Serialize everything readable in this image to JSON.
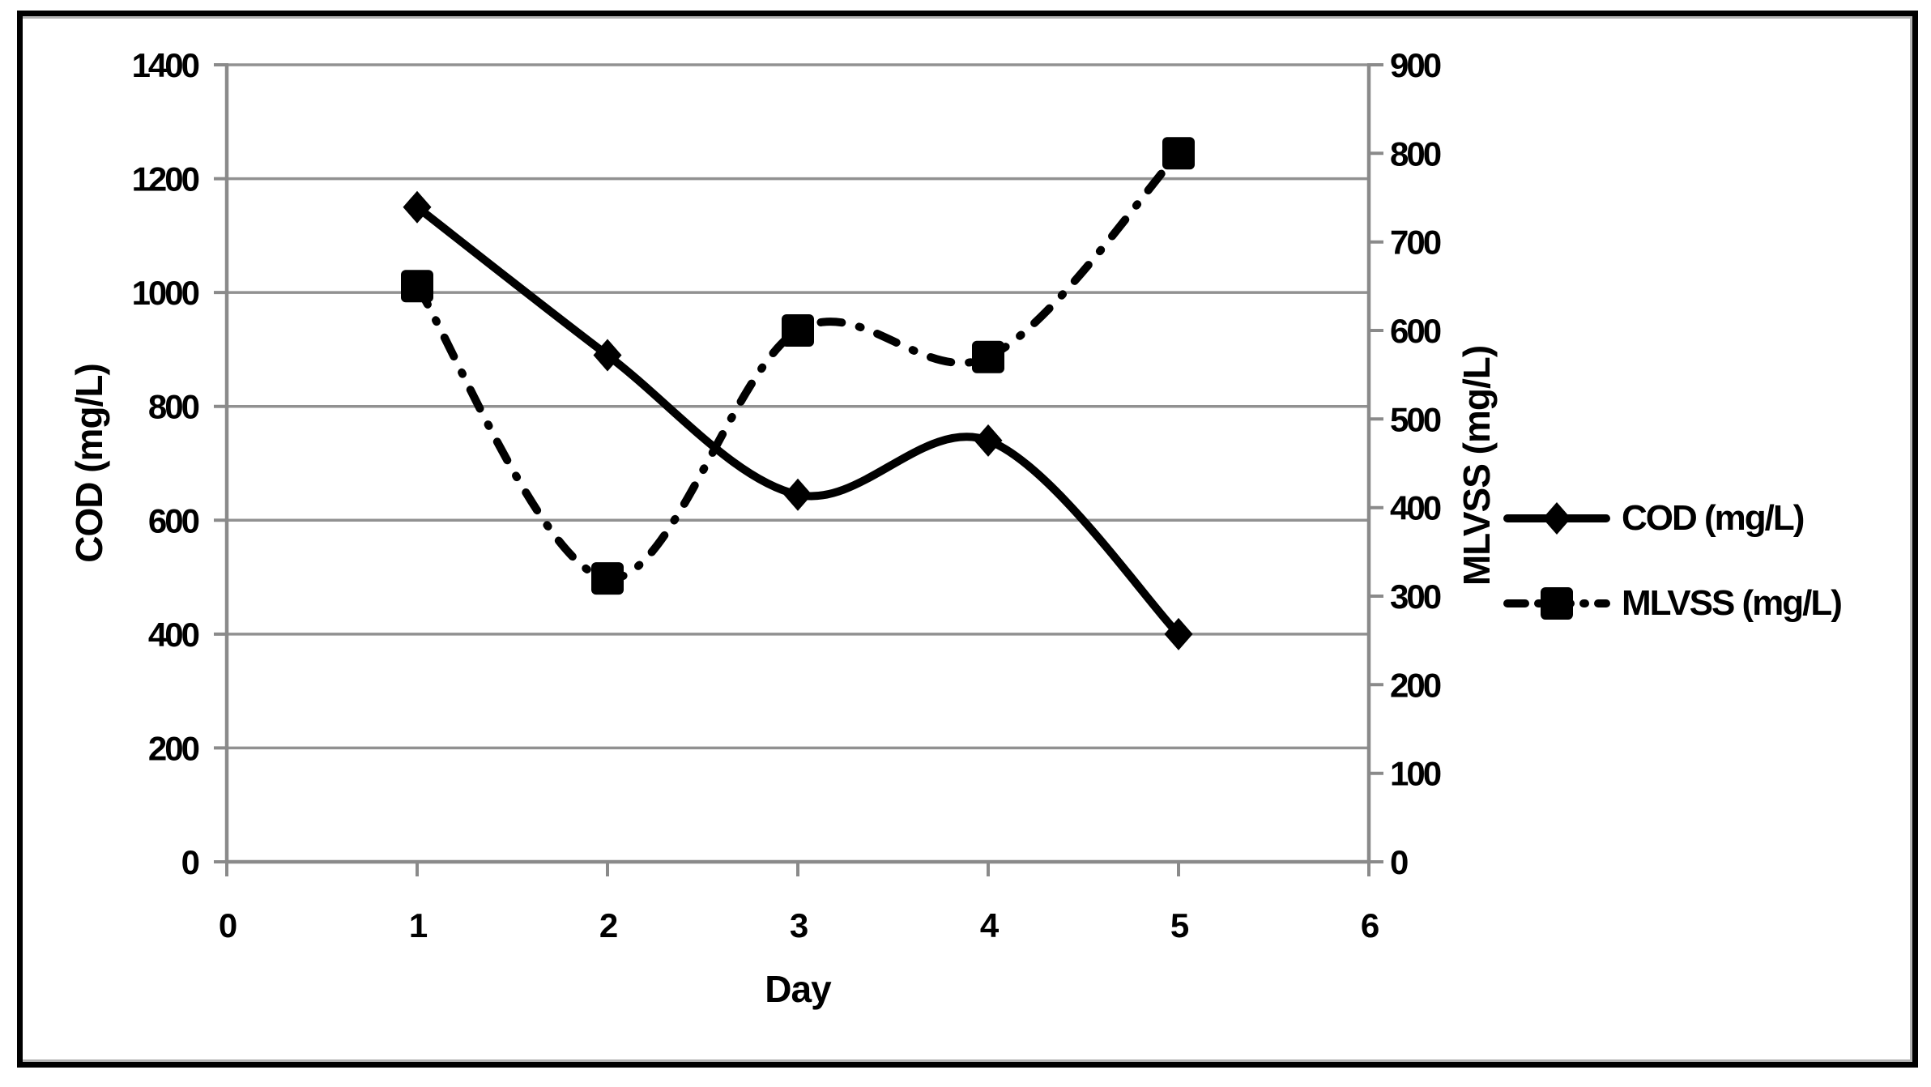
{
  "chart_data": {
    "type": "line",
    "title": "",
    "x": [
      1,
      2,
      3,
      4,
      5
    ],
    "series": [
      {
        "name": "COD (mg/L)",
        "axis": "left",
        "values": [
          1150,
          890,
          645,
          740,
          400
        ],
        "marker": "diamond",
        "line_style": "solid"
      },
      {
        "name": "MLVSS (mg/L)",
        "axis": "right",
        "values": [
          650,
          320,
          600,
          570,
          800
        ],
        "marker": "square",
        "line_style": "dash-dot"
      }
    ],
    "xlabel": "Day",
    "ylabel_left": "COD (mg/L)",
    "ylabel_right": "MLVSS (mg/L)",
    "x_ticks": [
      0,
      1,
      2,
      3,
      4,
      5,
      6
    ],
    "left_ticks": [
      0,
      200,
      400,
      600,
      800,
      1000,
      1200,
      1400
    ],
    "right_ticks": [
      0,
      100,
      200,
      300,
      400,
      500,
      600,
      700,
      800,
      900
    ],
    "xlim": [
      0,
      6
    ],
    "ylim_left": [
      0,
      1400
    ],
    "ylim_right": [
      0,
      900
    ],
    "grid": "horizontal-major",
    "legend_position": "right-middle",
    "colors": {
      "series": "#000000",
      "grid": "#919191",
      "axis": "#8a8a8a",
      "text": "#000000",
      "background": "#ffffff",
      "frame_border": "#000000"
    }
  }
}
